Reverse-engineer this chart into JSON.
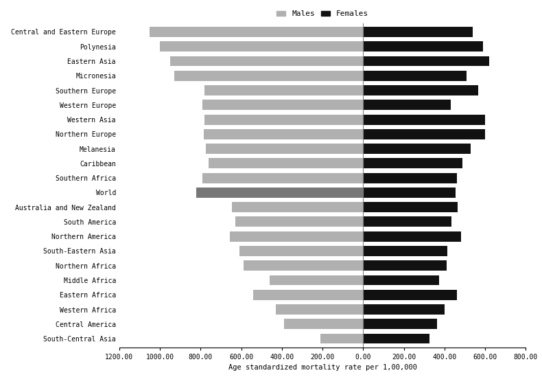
{
  "regions": [
    "Central and Eastern Europe",
    "Polynesia",
    "Eastern Asia",
    "Micronesia",
    "Southern Europe",
    "Western Europe",
    "Western Asia",
    "Northern Europe",
    "Melanesia",
    "Caribbean",
    "Southern Africa",
    "World",
    "Australia and New Zealand",
    "South America",
    "Northern America",
    "South-Eastern Asia",
    "Northern Africa",
    "Middle Africa",
    "Eastern Africa",
    "Western Africa",
    "Central America",
    "South-Central Asia"
  ],
  "males": [
    1050,
    1000,
    950,
    930,
    780,
    790,
    780,
    785,
    775,
    760,
    790,
    820,
    645,
    630,
    655,
    610,
    590,
    460,
    540,
    430,
    390,
    210
  ],
  "females": [
    540,
    590,
    620,
    510,
    565,
    430,
    600,
    600,
    530,
    490,
    460,
    455,
    465,
    435,
    480,
    415,
    410,
    375,
    460,
    400,
    365,
    325
  ],
  "male_color": "#b0b0b0",
  "female_color": "#111111",
  "world_male_color": "#777777",
  "xlabel": "Age standardized mortality rate per 1,00,000",
  "legend_male": "Males",
  "legend_female": "Females",
  "xlim_left": -1200,
  "xlim_right": 800,
  "xticks": [
    -1200,
    -1000,
    -800,
    -600,
    -400,
    -200,
    0,
    200,
    400,
    600,
    800
  ],
  "xticklabels": [
    "1200.00",
    "1000.00",
    "800.00",
    "600.00",
    "400.00",
    "200.00",
    "0.00",
    "200.00",
    "400.00",
    "600.00",
    "800.00"
  ],
  "background_color": "#ffffff"
}
